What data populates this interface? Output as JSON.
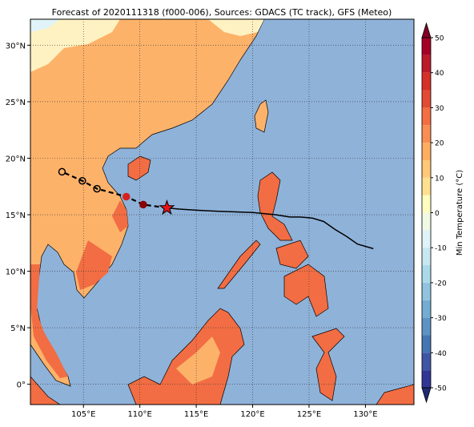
{
  "map": {
    "title": "Forecast of 2020111318 (f000-006), Sources: GDACS (TC track), GFS (Meteo)",
    "xlim": [
      100.3,
      134.3
    ],
    "ylim": [
      -1.8,
      32.3
    ],
    "xticks": [
      {
        "value": 105,
        "label": "105°E"
      },
      {
        "value": 110,
        "label": "110°E"
      },
      {
        "value": 115,
        "label": "115°E"
      },
      {
        "value": 120,
        "label": "120°E"
      },
      {
        "value": 125,
        "label": "125°E"
      },
      {
        "value": 130,
        "label": "130°E"
      }
    ],
    "yticks": [
      {
        "value": 0,
        "label": "0°"
      },
      {
        "value": 5,
        "label": "5°N"
      },
      {
        "value": 10,
        "label": "10°N"
      },
      {
        "value": 15,
        "label": "15°N"
      },
      {
        "value": 20,
        "label": "20°N"
      },
      {
        "value": 25,
        "label": "25°N"
      },
      {
        "value": 30,
        "label": "30°N"
      }
    ],
    "grid": true,
    "track": {
      "lon": [
        112.4,
        113.5,
        115,
        117,
        120,
        122,
        123.3,
        124.2,
        125.3,
        126.3,
        127.3,
        128.3,
        129.3,
        130.7
      ],
      "lat": [
        15.6,
        15.5,
        15.4,
        15.3,
        15.2,
        15.0,
        14.8,
        14.8,
        14.7,
        14.4,
        13.7,
        13.1,
        12.4,
        12.0
      ]
    },
    "forecast_track": {
      "lon": [
        112.4,
        110.3,
        108.8,
        106.2,
        104.9,
        103.1
      ],
      "lat": [
        15.6,
        15.9,
        16.6,
        17.3,
        18.0,
        18.8
      ]
    },
    "current_position": {
      "lon": 112.4,
      "lat": 15.6
    },
    "colorbar": {
      "label": "Min Temperature (°C)",
      "range": [
        -50,
        50
      ],
      "ticks": [
        -50,
        -40,
        -30,
        -20,
        -10,
        0,
        10,
        20,
        30,
        40,
        50
      ],
      "colors": [
        "#313695",
        "#3f56a5",
        "#4575b4",
        "#5d93c4",
        "#74add1",
        "#91c3de",
        "#abd9e9",
        "#c7e7f1",
        "#e0f3f8",
        "#f0f9e3",
        "#fffcc0",
        "#fee090",
        "#fec877",
        "#fdae61",
        "#f98e52",
        "#f46d43",
        "#e34a33",
        "#d73027",
        "#bb1a2a",
        "#a50026"
      ],
      "under_color": "#202a72",
      "over_color": "#800026"
    }
  }
}
